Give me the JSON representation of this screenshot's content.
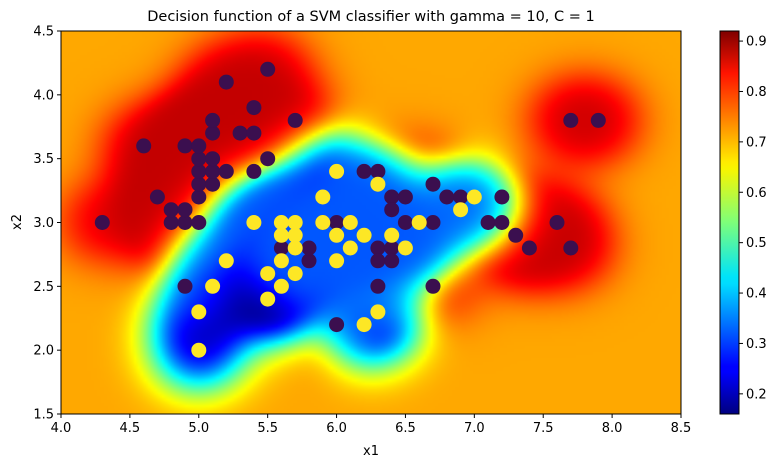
{
  "chart_data": {
    "type": "heatmap",
    "title": "Decision function of a SVM classifier with gamma = 10, C = 1",
    "xlabel": "x1",
    "ylabel": "x2",
    "xlim": [
      4.0,
      8.5
    ],
    "ylim": [
      1.5,
      4.5
    ],
    "xticks": [
      "4.0",
      "4.5",
      "5.0",
      "5.5",
      "6.0",
      "6.5",
      "7.0",
      "7.5",
      "8.0",
      "8.5"
    ],
    "yticks": [
      "1.5",
      "2.0",
      "2.5",
      "3.0",
      "3.5",
      "4.0",
      "4.5"
    ],
    "colormap": "jet",
    "colorbar": {
      "range": [
        0.16,
        0.92
      ],
      "ticks": [
        "0.2",
        "0.3",
        "0.4",
        "0.5",
        "0.6",
        "0.7",
        "0.8",
        "0.9"
      ]
    },
    "class_colors": {
      "class_0": "#3b0f4f",
      "class_1": "#fde725"
    },
    "series": [
      {
        "class": 0,
        "points": [
          [
            4.3,
            3.0
          ],
          [
            4.6,
            3.6
          ],
          [
            4.7,
            3.2
          ],
          [
            4.8,
            3.0
          ],
          [
            4.8,
            3.1
          ],
          [
            4.9,
            3.0
          ],
          [
            4.9,
            3.1
          ],
          [
            4.9,
            3.6
          ],
          [
            4.9,
            2.5
          ],
          [
            5.0,
            3.0
          ],
          [
            5.0,
            3.2
          ],
          [
            5.0,
            3.3
          ],
          [
            5.0,
            3.4
          ],
          [
            5.0,
            3.5
          ],
          [
            5.0,
            3.6
          ],
          [
            5.1,
            3.3
          ],
          [
            5.1,
            3.4
          ],
          [
            5.1,
            3.5
          ],
          [
            5.1,
            3.7
          ],
          [
            5.1,
            3.8
          ],
          [
            5.2,
            3.4
          ],
          [
            5.2,
            4.1
          ],
          [
            5.3,
            3.7
          ],
          [
            5.4,
            3.4
          ],
          [
            5.4,
            3.7
          ],
          [
            5.4,
            3.9
          ],
          [
            5.5,
            3.5
          ],
          [
            5.5,
            4.2
          ],
          [
            5.7,
            3.8
          ],
          [
            5.6,
            2.8
          ],
          [
            5.8,
            2.7
          ],
          [
            5.8,
            2.8
          ],
          [
            5.9,
            3.0
          ],
          [
            6.0,
            3.0
          ],
          [
            6.0,
            2.2
          ],
          [
            6.2,
            3.4
          ],
          [
            6.3,
            3.4
          ],
          [
            6.3,
            2.8
          ],
          [
            6.3,
            2.7
          ],
          [
            6.3,
            2.5
          ],
          [
            6.4,
            3.2
          ],
          [
            6.4,
            3.1
          ],
          [
            6.4,
            2.8
          ],
          [
            6.4,
            2.7
          ],
          [
            6.5,
            3.2
          ],
          [
            6.5,
            3.0
          ],
          [
            6.7,
            3.3
          ],
          [
            6.7,
            3.0
          ],
          [
            6.7,
            2.5
          ],
          [
            6.8,
            3.2
          ],
          [
            6.9,
            3.2
          ],
          [
            7.1,
            3.0
          ],
          [
            7.2,
            3.2
          ],
          [
            7.2,
            3.0
          ],
          [
            7.3,
            2.9
          ],
          [
            7.4,
            2.8
          ],
          [
            7.6,
            3.0
          ],
          [
            7.7,
            2.8
          ],
          [
            7.7,
            3.8
          ],
          [
            7.9,
            3.8
          ]
        ]
      },
      {
        "class": 1,
        "points": [
          [
            5.0,
            2.0
          ],
          [
            5.0,
            2.3
          ],
          [
            5.1,
            2.5
          ],
          [
            5.2,
            2.7
          ],
          [
            5.4,
            3.0
          ],
          [
            5.5,
            2.4
          ],
          [
            5.5,
            2.6
          ],
          [
            5.6,
            2.5
          ],
          [
            5.6,
            2.7
          ],
          [
            5.6,
            2.9
          ],
          [
            5.6,
            3.0
          ],
          [
            5.7,
            2.6
          ],
          [
            5.7,
            2.8
          ],
          [
            5.7,
            2.9
          ],
          [
            5.7,
            3.0
          ],
          [
            5.9,
            3.0
          ],
          [
            5.9,
            3.2
          ],
          [
            6.0,
            2.7
          ],
          [
            6.0,
            2.9
          ],
          [
            6.0,
            3.4
          ],
          [
            6.1,
            2.8
          ],
          [
            6.1,
            3.0
          ],
          [
            6.2,
            2.2
          ],
          [
            6.2,
            2.9
          ],
          [
            6.3,
            2.3
          ],
          [
            6.3,
            3.3
          ],
          [
            6.4,
            2.9
          ],
          [
            6.5,
            2.8
          ],
          [
            6.6,
            3.0
          ],
          [
            6.9,
            3.1
          ],
          [
            7.0,
            3.2
          ]
        ]
      }
    ]
  }
}
